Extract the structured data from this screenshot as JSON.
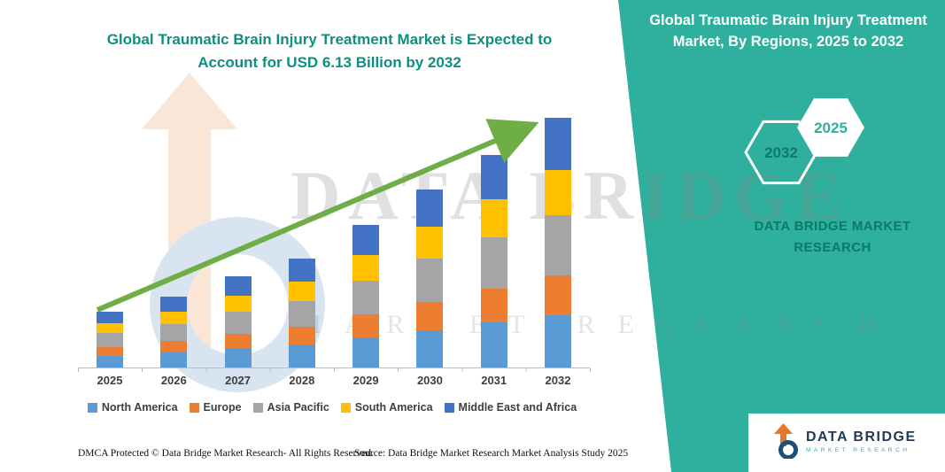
{
  "colors": {
    "teal-panel": "#2FAF9D",
    "teal-title": "#0F8F82",
    "teal-dark": "#0B7A6D",
    "arrow-green": "#6FAE46",
    "axis-gray": "#BDBDBD",
    "label-gray": "#3F3F3F",
    "logo-navy": "#1E3A56"
  },
  "watermark": {
    "line1": "DATA BRIDGE",
    "line2": "MARKET RESEARCH"
  },
  "side_panel": {
    "title": "Global Traumatic Brain Injury Treatment Market, By Regions, 2025 to 2032",
    "badge_back": "2032",
    "badge_front": "2025",
    "brand_line1": "DATA BRIDGE MARKET",
    "brand_line2": "RESEARCH"
  },
  "logo": {
    "name": "DATA BRIDGE",
    "sub": "MARKET RESEARCH"
  },
  "footer": {
    "dmca": "DMCA Protected © Data Bridge Market Research-  All Rights Reserved.",
    "source": "Source: Data Bridge Market Research  Market Analysis Study 2025"
  },
  "chart_data": {
    "type": "bar",
    "stacked": true,
    "title": "Global Traumatic Brain Injury Treatment Market is Expected to Account for USD 6.13 Billion by 2032",
    "unit": "USD Billion",
    "categories": [
      "2025",
      "2026",
      "2027",
      "2028",
      "2029",
      "2030",
      "2031",
      "2032"
    ],
    "series": [
      {
        "name": "North America",
        "color": "#5B9BD5",
        "values": [
          0.29,
          0.37,
          0.47,
          0.56,
          0.74,
          0.92,
          1.1,
          1.29
        ]
      },
      {
        "name": "Europe",
        "color": "#ED7D31",
        "values": [
          0.22,
          0.28,
          0.36,
          0.43,
          0.56,
          0.7,
          0.84,
          0.98
        ]
      },
      {
        "name": "Asia Pacific",
        "color": "#A5A5A5",
        "values": [
          0.33,
          0.42,
          0.53,
          0.64,
          0.84,
          1.05,
          1.26,
          1.47
        ]
      },
      {
        "name": "South America",
        "color": "#FFC000",
        "values": [
          0.25,
          0.31,
          0.4,
          0.48,
          0.63,
          0.79,
          0.94,
          1.1
        ]
      },
      {
        "name": "Middle East and Africa",
        "color": "#4472C4",
        "values": [
          0.29,
          0.37,
          0.47,
          0.56,
          0.73,
          0.92,
          1.09,
          1.29
        ]
      }
    ],
    "totals": [
      1.38,
      1.75,
      2.23,
      2.67,
      3.5,
      4.38,
      5.23,
      6.13
    ],
    "ylim": [
      0,
      6.5
    ],
    "grid": false,
    "legend_position": "bottom",
    "annotations": [
      "green upward trend arrow from 2025 bar to 2032 bar"
    ]
  }
}
